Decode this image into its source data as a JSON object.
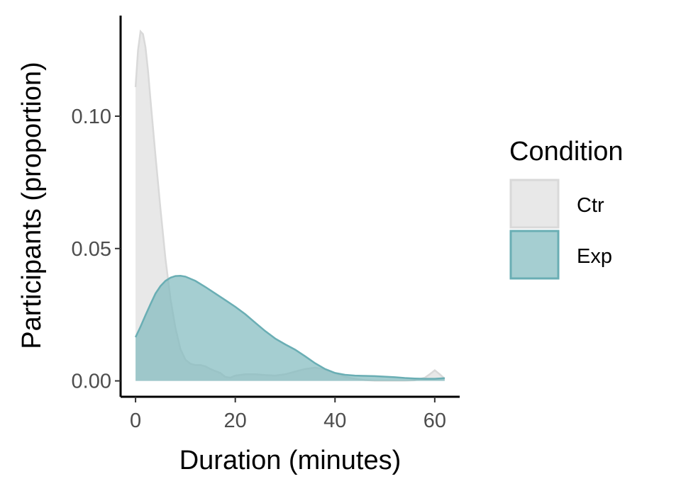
{
  "chart_data": {
    "type": "area",
    "xlabel": "Duration (minutes)",
    "ylabel": "Participants (proportion)",
    "xlim": [
      -3,
      65
    ],
    "ylim": [
      -0.006,
      0.138
    ],
    "x_ticks": [
      0,
      20,
      40,
      60
    ],
    "x_tick_labels": [
      "0",
      "20",
      "40",
      "60"
    ],
    "y_ticks": [
      0.0,
      0.05,
      0.1
    ],
    "y_tick_labels": [
      "0.00",
      "0.05",
      "0.10"
    ],
    "grid": false,
    "legend": {
      "title": "Condition",
      "placement": "right"
    },
    "series": [
      {
        "name": "Ctr",
        "fill": "#e6e6e6",
        "stroke": "#d9d9d9",
        "x": [
          0,
          0.5,
          1,
          1.5,
          2,
          2.5,
          3,
          4,
          5,
          6,
          7,
          8,
          9,
          10,
          11,
          12,
          13,
          14,
          15,
          16,
          17,
          18,
          19,
          20,
          22,
          24,
          26,
          28,
          30,
          32,
          34,
          36,
          38,
          40,
          42,
          44,
          46,
          48,
          50,
          52,
          54,
          56,
          58,
          59,
          60,
          61,
          62
        ],
        "y": [
          0.111,
          0.125,
          0.132,
          0.131,
          0.126,
          0.117,
          0.106,
          0.085,
          0.065,
          0.046,
          0.031,
          0.02,
          0.012,
          0.008,
          0.0065,
          0.006,
          0.006,
          0.0055,
          0.0045,
          0.0037,
          0.003,
          0.0015,
          0.0012,
          0.002,
          0.0025,
          0.0025,
          0.0022,
          0.002,
          0.0025,
          0.0035,
          0.0045,
          0.005,
          0.0043,
          0.003,
          0.0015,
          0.0008,
          0.0003,
          0.0001,
          0.0001,
          0.0001,
          0.0001,
          0.0002,
          0.0012,
          0.0025,
          0.004,
          0.0025,
          0.0008
        ]
      },
      {
        "name": "Exp",
        "fill": "#7fb9bd",
        "stroke": "#6aaeb4",
        "x": [
          0,
          1,
          2,
          3,
          4,
          5,
          6,
          7,
          8,
          9,
          10,
          12,
          14,
          16,
          18,
          20,
          22,
          24,
          26,
          28,
          30,
          32,
          34,
          36,
          38,
          40,
          42,
          44,
          46,
          48,
          50,
          52,
          54,
          56,
          58,
          60,
          62
        ],
        "y": [
          0.0165,
          0.0205,
          0.0248,
          0.029,
          0.033,
          0.0358,
          0.0378,
          0.039,
          0.0396,
          0.0397,
          0.0394,
          0.0378,
          0.0355,
          0.033,
          0.0305,
          0.028,
          0.0252,
          0.022,
          0.0188,
          0.016,
          0.0138,
          0.0118,
          0.0093,
          0.0067,
          0.0045,
          0.003,
          0.0023,
          0.002,
          0.0019,
          0.0018,
          0.0016,
          0.0014,
          0.0011,
          0.0009,
          0.0008,
          0.0008,
          0.001
        ]
      }
    ]
  }
}
